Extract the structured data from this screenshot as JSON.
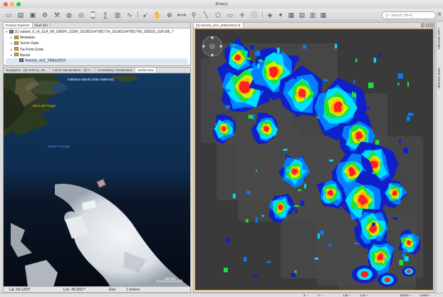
{
  "window": {
    "title": "[Empty]"
  },
  "colors": {
    "close": "#fc5f57",
    "minimize": "#fdbc2e",
    "zoom": "#28c840",
    "frame_highlight": "#d8b860"
  },
  "toolbar": {
    "icons": [
      "open-product-icon",
      "reopen-product-icon",
      "product-library-icon",
      "graph-builder-icon",
      "batch-processing-icon",
      "world-map-icon",
      "world-wind-icon",
      "time-series-icon",
      "band-maths-icon",
      "histogram-icon",
      "spectrum-icon",
      "select-tool-icon",
      "pan-tool-icon",
      "zoom-tool-icon",
      "range-finder-icon",
      "pin-tool-icon",
      "line-draw-icon",
      "polygon-draw-icon",
      "rectangle-draw-icon",
      "gcp-tool-icon",
      "pixel-info-icon",
      "layer-tool-icon",
      "magic-wand-icon",
      "view-tile-icon",
      "tile-horizontal-icon",
      "tile-vertical-icon",
      "tile-evenly-icon"
    ],
    "search_placeholder": "Q~ Search (⌘+I)"
  },
  "product_explorer": {
    "tabs": [
      "Product Explorer",
      "Pixel Info"
    ],
    "tree": [
      {
        "label": "[1] subset_0_of_S1A_IW_GRDH_1SSH_20190314T081714_20190314T081743_026331_02F185_7",
        "kind": "prod",
        "indent": 0
      },
      {
        "label": "Metadata",
        "kind": "fold",
        "indent": 1
      },
      {
        "label": "Vector Data",
        "kind": "fold",
        "indent": 1
      },
      {
        "label": "Tie-Point Grids",
        "kind": "fold",
        "indent": 1
      },
      {
        "label": "Bands",
        "kind": "fold",
        "indent": 1,
        "open": true
      },
      {
        "label": "Velocity_slv1_26Mar2019",
        "kind": "band",
        "indent": 2
      }
    ]
  },
  "navigation": {
    "tabs": [
      "Navigation - [3] Velocity_slv...",
      "Colour Manipulation - [3] V...",
      "Uncertainty Visualisation",
      "World View"
    ],
    "labels": {
      "falklands": "Falkland Islands (Islas Malvinas)",
      "fuego": "Tierra del Fuego",
      "drake": "Drake Passage"
    },
    "scale": "200 Km",
    "status": {
      "lat": "Lat   -60.1203°",
      "lon": "Lon   -45.6557°",
      "elev": "Elev",
      "meters": "1 meters"
    }
  },
  "image_view": {
    "tab_title": "[3] Velocity_slv1_26Mar2019",
    "velocity_legend_colors": [
      "#1020c8",
      "#0080ff",
      "#00e0ff",
      "#20e040",
      "#d0f000",
      "#ffb000",
      "#ff2020"
    ]
  },
  "side_panels": [
    "Layer Manager",
    "Mask Manager"
  ],
  "statusbar": {
    "x": "X  --",
    "y": "Y  --",
    "lat": "Lat  --",
    "lon": "Lon  --",
    "zoom": "Zoom  --",
    "level": "Level  --"
  }
}
